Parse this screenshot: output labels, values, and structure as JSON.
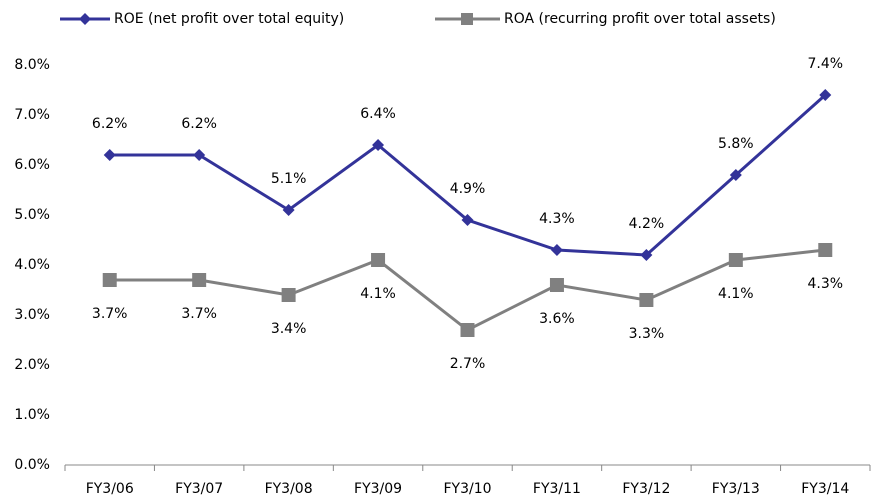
{
  "chart_data": {
    "type": "line",
    "categories": [
      "FY3/06",
      "FY3/07",
      "FY3/08",
      "FY3/09",
      "FY3/10",
      "FY3/11",
      "FY3/12",
      "FY3/13",
      "FY3/14"
    ],
    "series": [
      {
        "name": "ROE (net profit over total equity)",
        "color": "#333399",
        "marker": "diamond",
        "values": [
          6.2,
          6.2,
          5.1,
          6.4,
          4.9,
          4.3,
          4.2,
          5.8,
          7.4
        ],
        "value_labels": [
          "6.2%",
          "6.2%",
          "5.1%",
          "6.4%",
          "4.9%",
          "4.3%",
          "4.2%",
          "5.8%",
          "7.4%"
        ]
      },
      {
        "name": "ROA (recurring profit over total assets)",
        "color": "#808080",
        "marker": "square",
        "values": [
          3.7,
          3.7,
          3.4,
          4.1,
          2.7,
          3.6,
          3.3,
          4.1,
          4.3
        ],
        "value_labels": [
          "3.7%",
          "3.7%",
          "3.4%",
          "4.1%",
          "2.7%",
          "3.6%",
          "3.3%",
          "4.1%",
          "4.3%"
        ]
      }
    ],
    "ylim": [
      0,
      8
    ],
    "yticks": [
      {
        "value": 0,
        "label": "0.0%"
      },
      {
        "value": 1,
        "label": "1.0%"
      },
      {
        "value": 2,
        "label": "2.0%"
      },
      {
        "value": 3,
        "label": "3.0%"
      },
      {
        "value": 4,
        "label": "4.0%"
      },
      {
        "value": 5,
        "label": "5.0%"
      },
      {
        "value": 6,
        "label": "6.0%"
      },
      {
        "value": 7,
        "label": "7.0%"
      },
      {
        "value": 8,
        "label": "8.0%"
      }
    ],
    "grid": false,
    "legend": "top"
  }
}
